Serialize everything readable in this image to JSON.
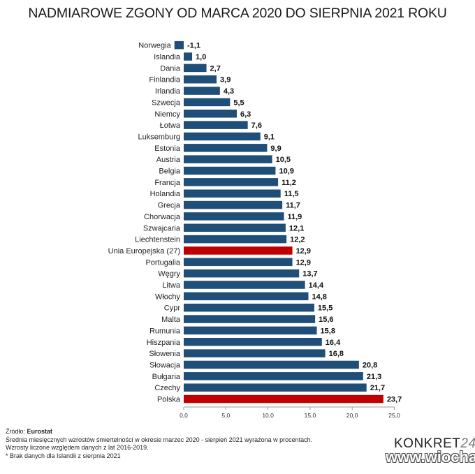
{
  "title": "NADMIAROWE ZGONY OD MARCA 2020 DO SIERPNIA 2021 ROKU",
  "colors": {
    "bar": "#1f4e79",
    "highlight": "#c00000",
    "axis": "#999999"
  },
  "chart_data": {
    "type": "bar",
    "orientation": "horizontal",
    "categories": [
      "Norwegia",
      "Islandia",
      "Dania",
      "Finlandia",
      "Irlandia",
      "Szwecja",
      "Niemcy",
      "Łotwa",
      "Luksemburg",
      "Estonia",
      "Austria",
      "Belgia",
      "Francja",
      "Holandia",
      "Grecja",
      "Chorwacja",
      "Szwajcaria",
      "Liechtenstein",
      "Unia Europejska (27)",
      "Portugalia",
      "Węgry",
      "Litwa",
      "Włochy",
      "Cypr",
      "Malta",
      "Rumunia",
      "Hiszpania",
      "Słowenia",
      "Słowacja",
      "Bułgaria",
      "Czechy",
      "Polska"
    ],
    "values": [
      -1.1,
      1.0,
      2.7,
      3.9,
      4.3,
      5.5,
      6.3,
      7.6,
      9.1,
      9.9,
      10.5,
      10.9,
      11.2,
      11.5,
      11.7,
      11.9,
      12.1,
      12.2,
      12.9,
      12.9,
      13.7,
      14.4,
      14.8,
      15.5,
      15.6,
      15.8,
      16.4,
      16.8,
      20.8,
      21.3,
      21.7,
      23.7
    ],
    "value_labels": [
      "-1,1",
      "1,0",
      "2,7",
      "3,9",
      "4,3",
      "5,5",
      "6,3",
      "7,6",
      "9,1",
      "9,9",
      "10,5",
      "10,9",
      "11,2",
      "11,5",
      "11,7",
      "11,9",
      "12,1",
      "12,2",
      "12,9",
      "12,9",
      "13,7",
      "14,4",
      "14,8",
      "15,5",
      "15,6",
      "15,8",
      "16,4",
      "16,8",
      "20,8",
      "21,3",
      "21,7",
      "23,7"
    ],
    "highlighted": [
      "Unia Europejska (27)",
      "Polska"
    ],
    "xticks": [
      "0,0",
      "5,0",
      "10,0",
      "15,0",
      "20,0",
      "25,0"
    ],
    "xlim": [
      0,
      25
    ],
    "grid": false
  },
  "footer": {
    "source_label": "Źródło:",
    "source_value": "Eurostat",
    "notes": [
      "Średnia miesięcznych wzrostów śmiertelności w okresie marzec 2020 - sierpień 2021 wyrażona w procentach.",
      "Wzrosty liczone względem danych z lat 2016-2019.",
      "* Brak danych dla Islandii z sierpnia 2021"
    ]
  },
  "logo": {
    "text": "KONKRET",
    "accent": "24"
  },
  "watermark": "www.wiocha.pl"
}
